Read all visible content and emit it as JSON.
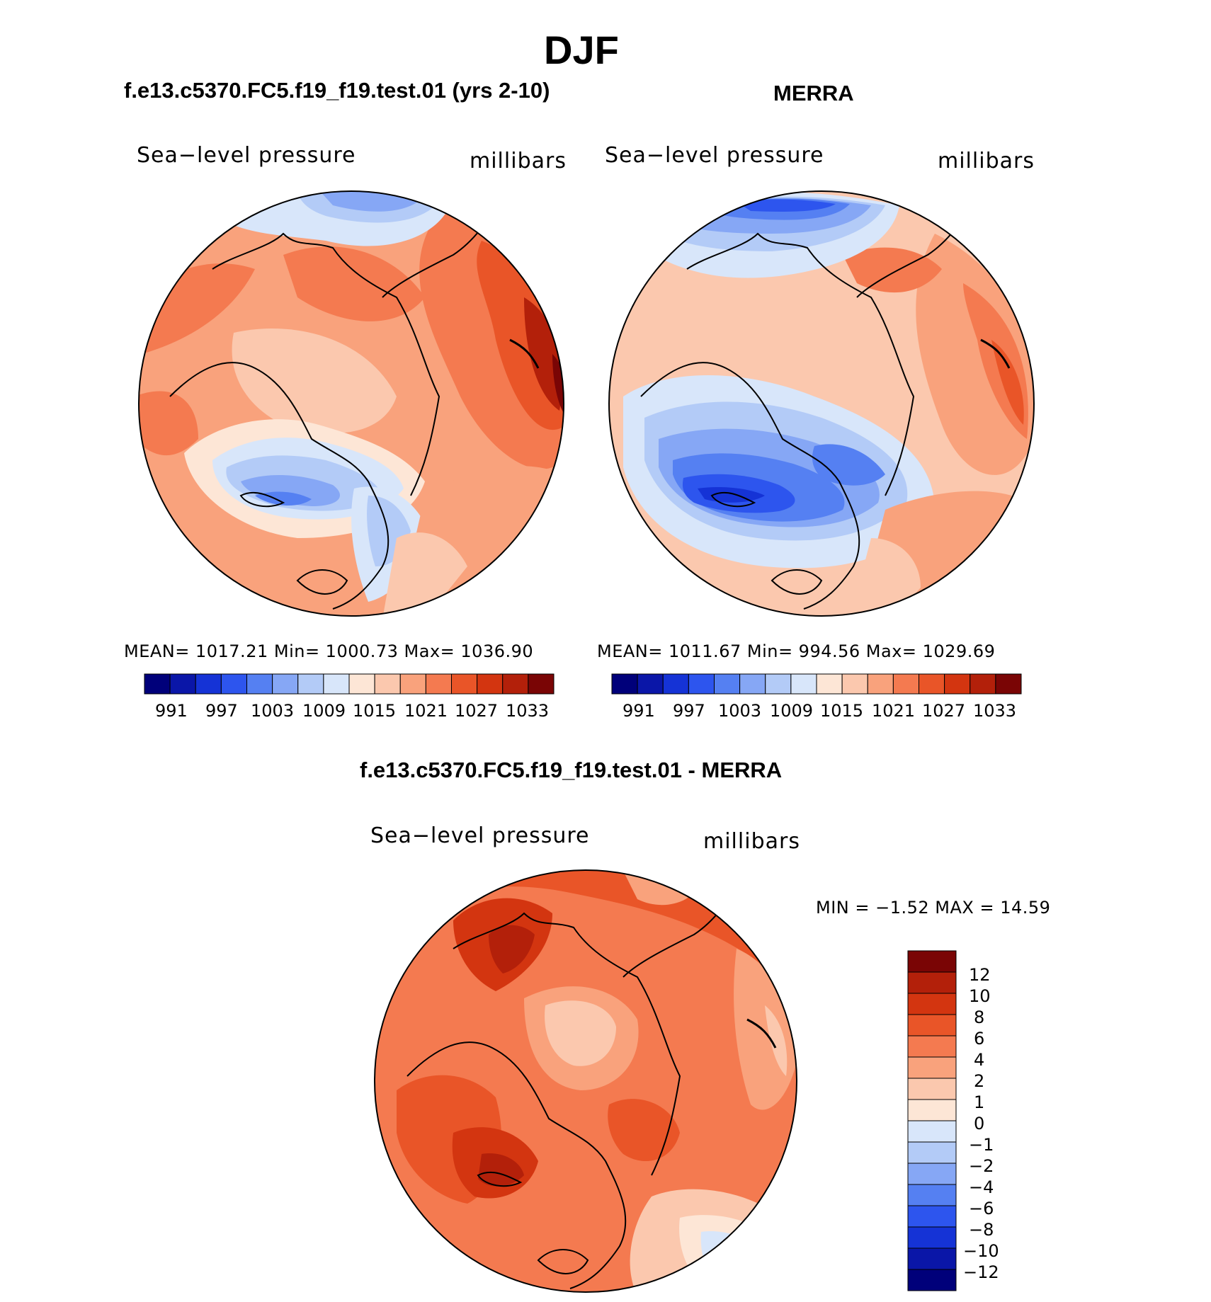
{
  "title": "DJF",
  "panels": [
    {
      "heading": "f.e13.c5370.FC5.f19_f19.test.01 (yrs 2-10)",
      "variable": "Sea−level pressure",
      "units": "millibars",
      "stats": "MEAN=  1017.21    Min=  1000.73    Max=  1036.90",
      "colorbar_labels": [
        "991",
        "997",
        "1003",
        "1009",
        "1015",
        "1021",
        "1027",
        "1033"
      ]
    },
    {
      "heading": "MERRA",
      "variable": "Sea−level pressure",
      "units": "millibars",
      "stats": "MEAN=  1011.67    Min=  994.56    Max=  1029.69",
      "colorbar_labels": [
        "991",
        "997",
        "1003",
        "1009",
        "1015",
        "1021",
        "1027",
        "1033"
      ]
    }
  ],
  "difference": {
    "heading": "f.e13.c5370.FC5.f19_f19.test.01 - MERRA",
    "variable": "Sea−level pressure",
    "units": "millibars",
    "minmax": "MIN =    −1.52  MAX =    14.59",
    "colorbar_labels": [
      "12",
      "10",
      "8",
      "6",
      "4",
      "2",
      "1",
      "0",
      "−1",
      "−2",
      "−4",
      "−6",
      "−8",
      "−10",
      "−12"
    ]
  },
  "colors": {
    "abs_scale": [
      "#00007a",
      "#0a16a8",
      "#1533d6",
      "#2d55ee",
      "#5580f2",
      "#86a7f5",
      "#b3cbf7",
      "#d8e6fa",
      "#fde6d6",
      "#fbc8ae",
      "#f9a27c",
      "#f47a50",
      "#e95528",
      "#d33510",
      "#b3200a",
      "#7a0505"
    ],
    "diff_scale": [
      "#7a0505",
      "#b3200a",
      "#d33510",
      "#e95528",
      "#f47a50",
      "#f9a27c",
      "#fbc8ae",
      "#fde6d6",
      "#d8e6fa",
      "#b3cbf7",
      "#86a7f5",
      "#5580f2",
      "#2d55ee",
      "#1533d6",
      "#0a16a8",
      "#00007a"
    ]
  }
}
